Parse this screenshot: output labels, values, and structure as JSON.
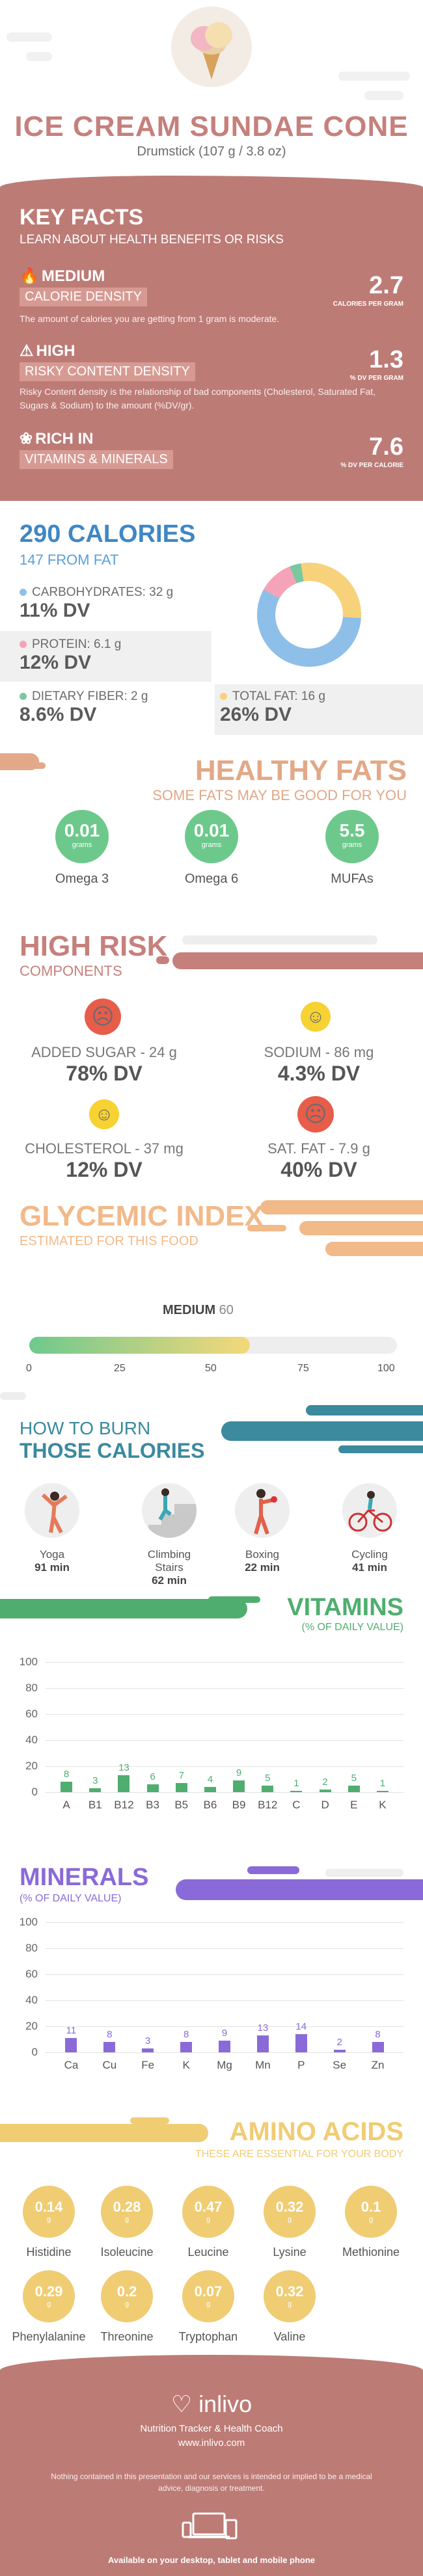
{
  "header": {
    "title": "ICE CREAM SUNDAE CONE",
    "subtitle": "Drumstick (107 g / 3.8 oz)"
  },
  "key_facts": {
    "title": "KEY FACTS",
    "subtitle": "LEARN ABOUT HEALTH BENEFITS OR RISKS",
    "items": [
      {
        "level": "MEDIUM",
        "tag": "CALORIE DENSITY",
        "desc": "The amount of calories you are getting from 1 gram is moderate.",
        "value": "2.7",
        "unit": "CALORIES PER GRAM",
        "icon": "flame-icon"
      },
      {
        "level": "HIGH",
        "tag": "RISKY CONTENT DENSITY",
        "desc": "Risky Content density is the relationship of bad components (Cholesterol, Saturated Fat, Sugars & Sodium) to the amount (%DV/gr).",
        "value": "1.3",
        "unit": "% DV PER GRAM",
        "icon": "warning-icon"
      },
      {
        "level": "RICH",
        "level_suffix": "IN",
        "tag": "VITAMINS & MINERALS",
        "desc": "",
        "value": "7.6",
        "unit": "% DV PER CALORIE",
        "icon": "leaf-icon"
      }
    ]
  },
  "calories": {
    "title": "290 CALORIES",
    "subtitle": "147 FROM FAT",
    "macros": [
      {
        "label": "CARBOHYDRATES: 32 g",
        "dv": "11% DV",
        "color": "#8dbfe8"
      },
      {
        "label": "PROTEIN: 6.1 g",
        "dv": "12% DV",
        "color": "#f4a3b8"
      },
      {
        "label": "DIETARY FIBER: 2 g",
        "dv": "8.6% DV",
        "color": "#7cc7a0"
      },
      {
        "label": "TOTAL FAT: 16 g",
        "dv": "26% DV",
        "color": "#f7d27a"
      }
    ],
    "donut": [
      {
        "name": "carbohydrates",
        "value": 32,
        "color": "#8dbfe8"
      },
      {
        "name": "protein",
        "value": 6.1,
        "color": "#f4a3b8"
      },
      {
        "name": "fiber",
        "value": 2,
        "color": "#7cc7a0"
      },
      {
        "name": "fat",
        "value": 16,
        "color": "#f7d27a"
      }
    ]
  },
  "healthy_fats": {
    "title": "HEALTHY FATS",
    "subtitle": "SOME FATS MAY BE GOOD FOR YOU",
    "items": [
      {
        "value": "0.01",
        "unit": "grams",
        "label": "Omega 3"
      },
      {
        "value": "0.01",
        "unit": "grams",
        "label": "Omega 6"
      },
      {
        "value": "5.5",
        "unit": "grams",
        "label": "MUFAs"
      }
    ]
  },
  "high_risk": {
    "title": "HIGH RISK",
    "subtitle": "COMPONENTS",
    "items": [
      {
        "label": "ADDED SUGAR - 24 g",
        "dv": "78% DV",
        "mood": "sad",
        "color": "#e85c4a"
      },
      {
        "label": "SODIUM - 86 mg",
        "dv": "4.3% DV",
        "mood": "happy",
        "color": "#f6d233"
      },
      {
        "label": "CHOLESTEROL - 37 mg",
        "dv": "12% DV",
        "mood": "happy",
        "color": "#f6d233"
      },
      {
        "label": "SAT. FAT - 7.9 g",
        "dv": "40% DV",
        "mood": "sad",
        "color": "#e85c4a"
      }
    ]
  },
  "glycemic": {
    "title": "GLYCEMIC INDEX",
    "subtitle": "ESTIMATED FOR THIS FOOD",
    "level": "MEDIUM",
    "value": 60,
    "value_text": "60",
    "ticks": [
      "0",
      "25",
      "50",
      "75",
      "100"
    ]
  },
  "burn": {
    "title1": "HOW TO BURN",
    "title2": "THOSE CALORIES",
    "activities": [
      {
        "name": "Yoga",
        "minutes": "91 min",
        "icon": "yoga-icon"
      },
      {
        "name": "Climbing Stairs",
        "minutes": "62 min",
        "icon": "stairs-icon"
      },
      {
        "name": "Boxing",
        "minutes": "22 min",
        "icon": "boxing-icon"
      },
      {
        "name": "Cycling",
        "minutes": "41 min",
        "icon": "cycling-icon"
      }
    ]
  },
  "vitamins": {
    "title": "VITAMINS",
    "subtitle": "(% OF DAILY VALUE)",
    "color": "#4fae6f"
  },
  "minerals": {
    "title": "MINERALS",
    "subtitle": "(% OF DAILY VALUE)",
    "color": "#8a6ad8"
  },
  "chart_data": [
    {
      "type": "bar",
      "title": "VITAMINS",
      "ylabel": "(% OF DAILY VALUE)",
      "categories": [
        "A",
        "B1",
        "B12",
        "B3",
        "B5",
        "B6",
        "B9",
        "B12",
        "C",
        "D",
        "E",
        "K"
      ],
      "values": [
        8,
        3,
        13,
        6,
        7,
        4,
        9,
        5,
        1,
        2,
        5,
        1
      ],
      "yticks": [
        "100",
        "80",
        "60",
        "40",
        "20",
        "0"
      ],
      "ylim": [
        0,
        100
      ]
    },
    {
      "type": "bar",
      "title": "MINERALS",
      "ylabel": "(% OF DAILY VALUE)",
      "categories": [
        "Ca",
        "Cu",
        "Fe",
        "K",
        "Mg",
        "Mn",
        "P",
        "Se",
        "Zn"
      ],
      "values": [
        11,
        8,
        3,
        8,
        9,
        13,
        14,
        2,
        8
      ],
      "yticks": [
        "100",
        "80",
        "60",
        "40",
        "20",
        "0"
      ],
      "ylim": [
        0,
        100
      ]
    }
  ],
  "amino": {
    "title": "AMINO ACIDS",
    "subtitle": "THESE ARE ESSENTIAL FOR YOUR BODY",
    "unit": "g",
    "items": [
      {
        "value": "0.14",
        "label": "Histidine"
      },
      {
        "value": "0.28",
        "label": "Isoleucine"
      },
      {
        "value": "0.47",
        "label": "Leucine"
      },
      {
        "value": "0.32",
        "label": "Lysine"
      },
      {
        "value": "0.1",
        "label": "Methionine"
      },
      {
        "value": "0.29",
        "label": "Phenylalanine"
      },
      {
        "value": "0.2",
        "label": "Threonine"
      },
      {
        "value": "0.07",
        "label": "Tryptophan"
      },
      {
        "value": "0.32",
        "label": "Valine"
      }
    ]
  },
  "footer": {
    "logo": "inlivo",
    "tagline": "Nutrition Tracker & Health Coach",
    "url": "www.inlivo.com",
    "disclaimer": "Nothing contained in this presentation and our services is intended or implied to be a medical advice, diagnosis or treatment.",
    "available": "Available on your desktop, tablet and mobile phone"
  }
}
